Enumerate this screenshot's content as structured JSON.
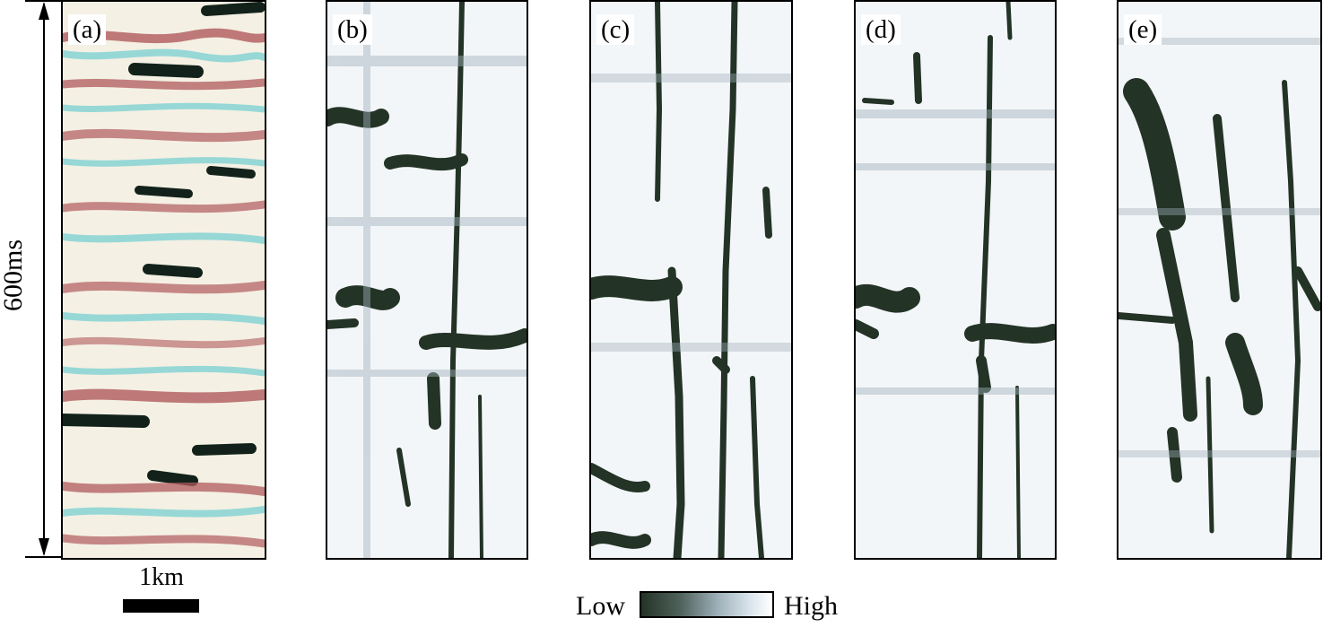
{
  "time_scale": {
    "label": "600ms"
  },
  "distance_scale": {
    "label": "1km"
  },
  "panels": [
    {
      "id": "a",
      "label": "(a)",
      "description_icon": "seismic-amplitude-section"
    },
    {
      "id": "b",
      "label": "(b)",
      "description_icon": "attribute-section"
    },
    {
      "id": "c",
      "label": "(c)",
      "description_icon": "attribute-section"
    },
    {
      "id": "d",
      "label": "(d)",
      "description_icon": "attribute-section"
    },
    {
      "id": "e",
      "label": "(e)",
      "description_icon": "attribute-section"
    }
  ],
  "colorbar": {
    "low_label": "Low",
    "high_label": "High",
    "low_color": "#233326",
    "high_color": "#ffffff"
  },
  "colors": {
    "seismic_red": "#b05a5c",
    "seismic_cyan": "#7fd2d2",
    "seismic_black": "#12221a",
    "attribute_dark": "#233326",
    "attribute_light": "#eef2f5"
  }
}
